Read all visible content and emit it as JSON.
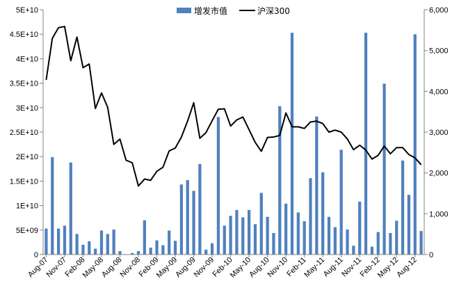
{
  "chart_data": {
    "type": "bar",
    "series": [
      {
        "name": "增发市值",
        "type": "bar",
        "axis": "left",
        "color": "#4F81BD",
        "values": [
          5300000000.0,
          19900000000.0,
          5300000000.0,
          5900000000.0,
          18800000000.0,
          4200000000.0,
          2000000000.0,
          2700000000.0,
          1200000000.0,
          4900000000.0,
          4200000000.0,
          5100000000.0,
          700000000.0,
          0,
          300000000.0,
          700000000.0,
          7000000000.0,
          1400000000.0,
          2900000000.0,
          1900000000.0,
          4900000000.0,
          2800000000.0,
          14300000000.0,
          15200000000.0,
          13000000000.0,
          18500000000.0,
          1000000000.0,
          2300000000.0,
          28100000000.0,
          5900000000.0,
          7900000000.0,
          9100000000.0,
          7600000000.0,
          9100000000.0,
          6200000000.0,
          12600000000.0,
          7700000000.0,
          4400000000.0,
          30300000000.0,
          10400000000.0,
          45300000000.0,
          8600000000.0,
          6800000000.0,
          15600000000.0,
          28200000000.0,
          16800000000.0,
          7700000000.0,
          5600000000.0,
          21400000000.0,
          5100000000.0,
          1800000000.0,
          10800000000.0,
          45300000000.0,
          1600000000.0,
          4600000000.0,
          34900000000.0,
          4400000000.0,
          6900000000.0,
          19200000000.0,
          12200000000.0,
          45000000000.0,
          4800000000.0
        ]
      },
      {
        "name": "沪深300",
        "type": "line",
        "axis": "right",
        "color": "#000000",
        "values": [
          4280,
          5300,
          5560,
          5590,
          4750,
          5330,
          4580,
          4670,
          3580,
          3960,
          3610,
          2700,
          2830,
          2310,
          2250,
          1680,
          1850,
          1820,
          2040,
          2140,
          2540,
          2610,
          2880,
          3270,
          3720,
          2850,
          2990,
          3280,
          3560,
          3570,
          3150,
          3300,
          3370,
          3060,
          2750,
          2530,
          2870,
          2880,
          2920,
          3470,
          3130,
          3130,
          3090,
          3250,
          3270,
          3210,
          3000,
          3050,
          3000,
          2830,
          2570,
          2680,
          2560,
          2340,
          2430,
          2660,
          2470,
          2620,
          2620,
          2450,
          2370,
          2200
        ]
      }
    ],
    "x_tick_labels": [
      "Aug-07",
      "Nov-07",
      "Feb-08",
      "May-08",
      "Aug-08",
      "Nov-08",
      "Feb-09",
      "May-09",
      "Aug-09",
      "Nov-09",
      "Feb-10",
      "May-10",
      "Aug-10",
      "Nov-10",
      "Feb-11",
      "May-11",
      "Aug-11",
      "Nov-11",
      "Feb-12",
      "May-12",
      "Aug-12"
    ],
    "x_tick_every": 3,
    "left_axis": {
      "range": [
        0,
        50000000000
      ],
      "tick_labels": [
        "0",
        "5E+09",
        "1E+10",
        "1.5E+10",
        "2E+10",
        "2.5E+10",
        "3E+10",
        "3.5E+10",
        "4E+10",
        "4.5E+10",
        "5E+10"
      ]
    },
    "right_axis": {
      "range": [
        0,
        6000
      ],
      "tick_labels": [
        "0",
        "1,000",
        "2,000",
        "3,000",
        "4,000",
        "5,000",
        "6,000"
      ]
    },
    "grid": false,
    "legend_position": "top-center"
  }
}
